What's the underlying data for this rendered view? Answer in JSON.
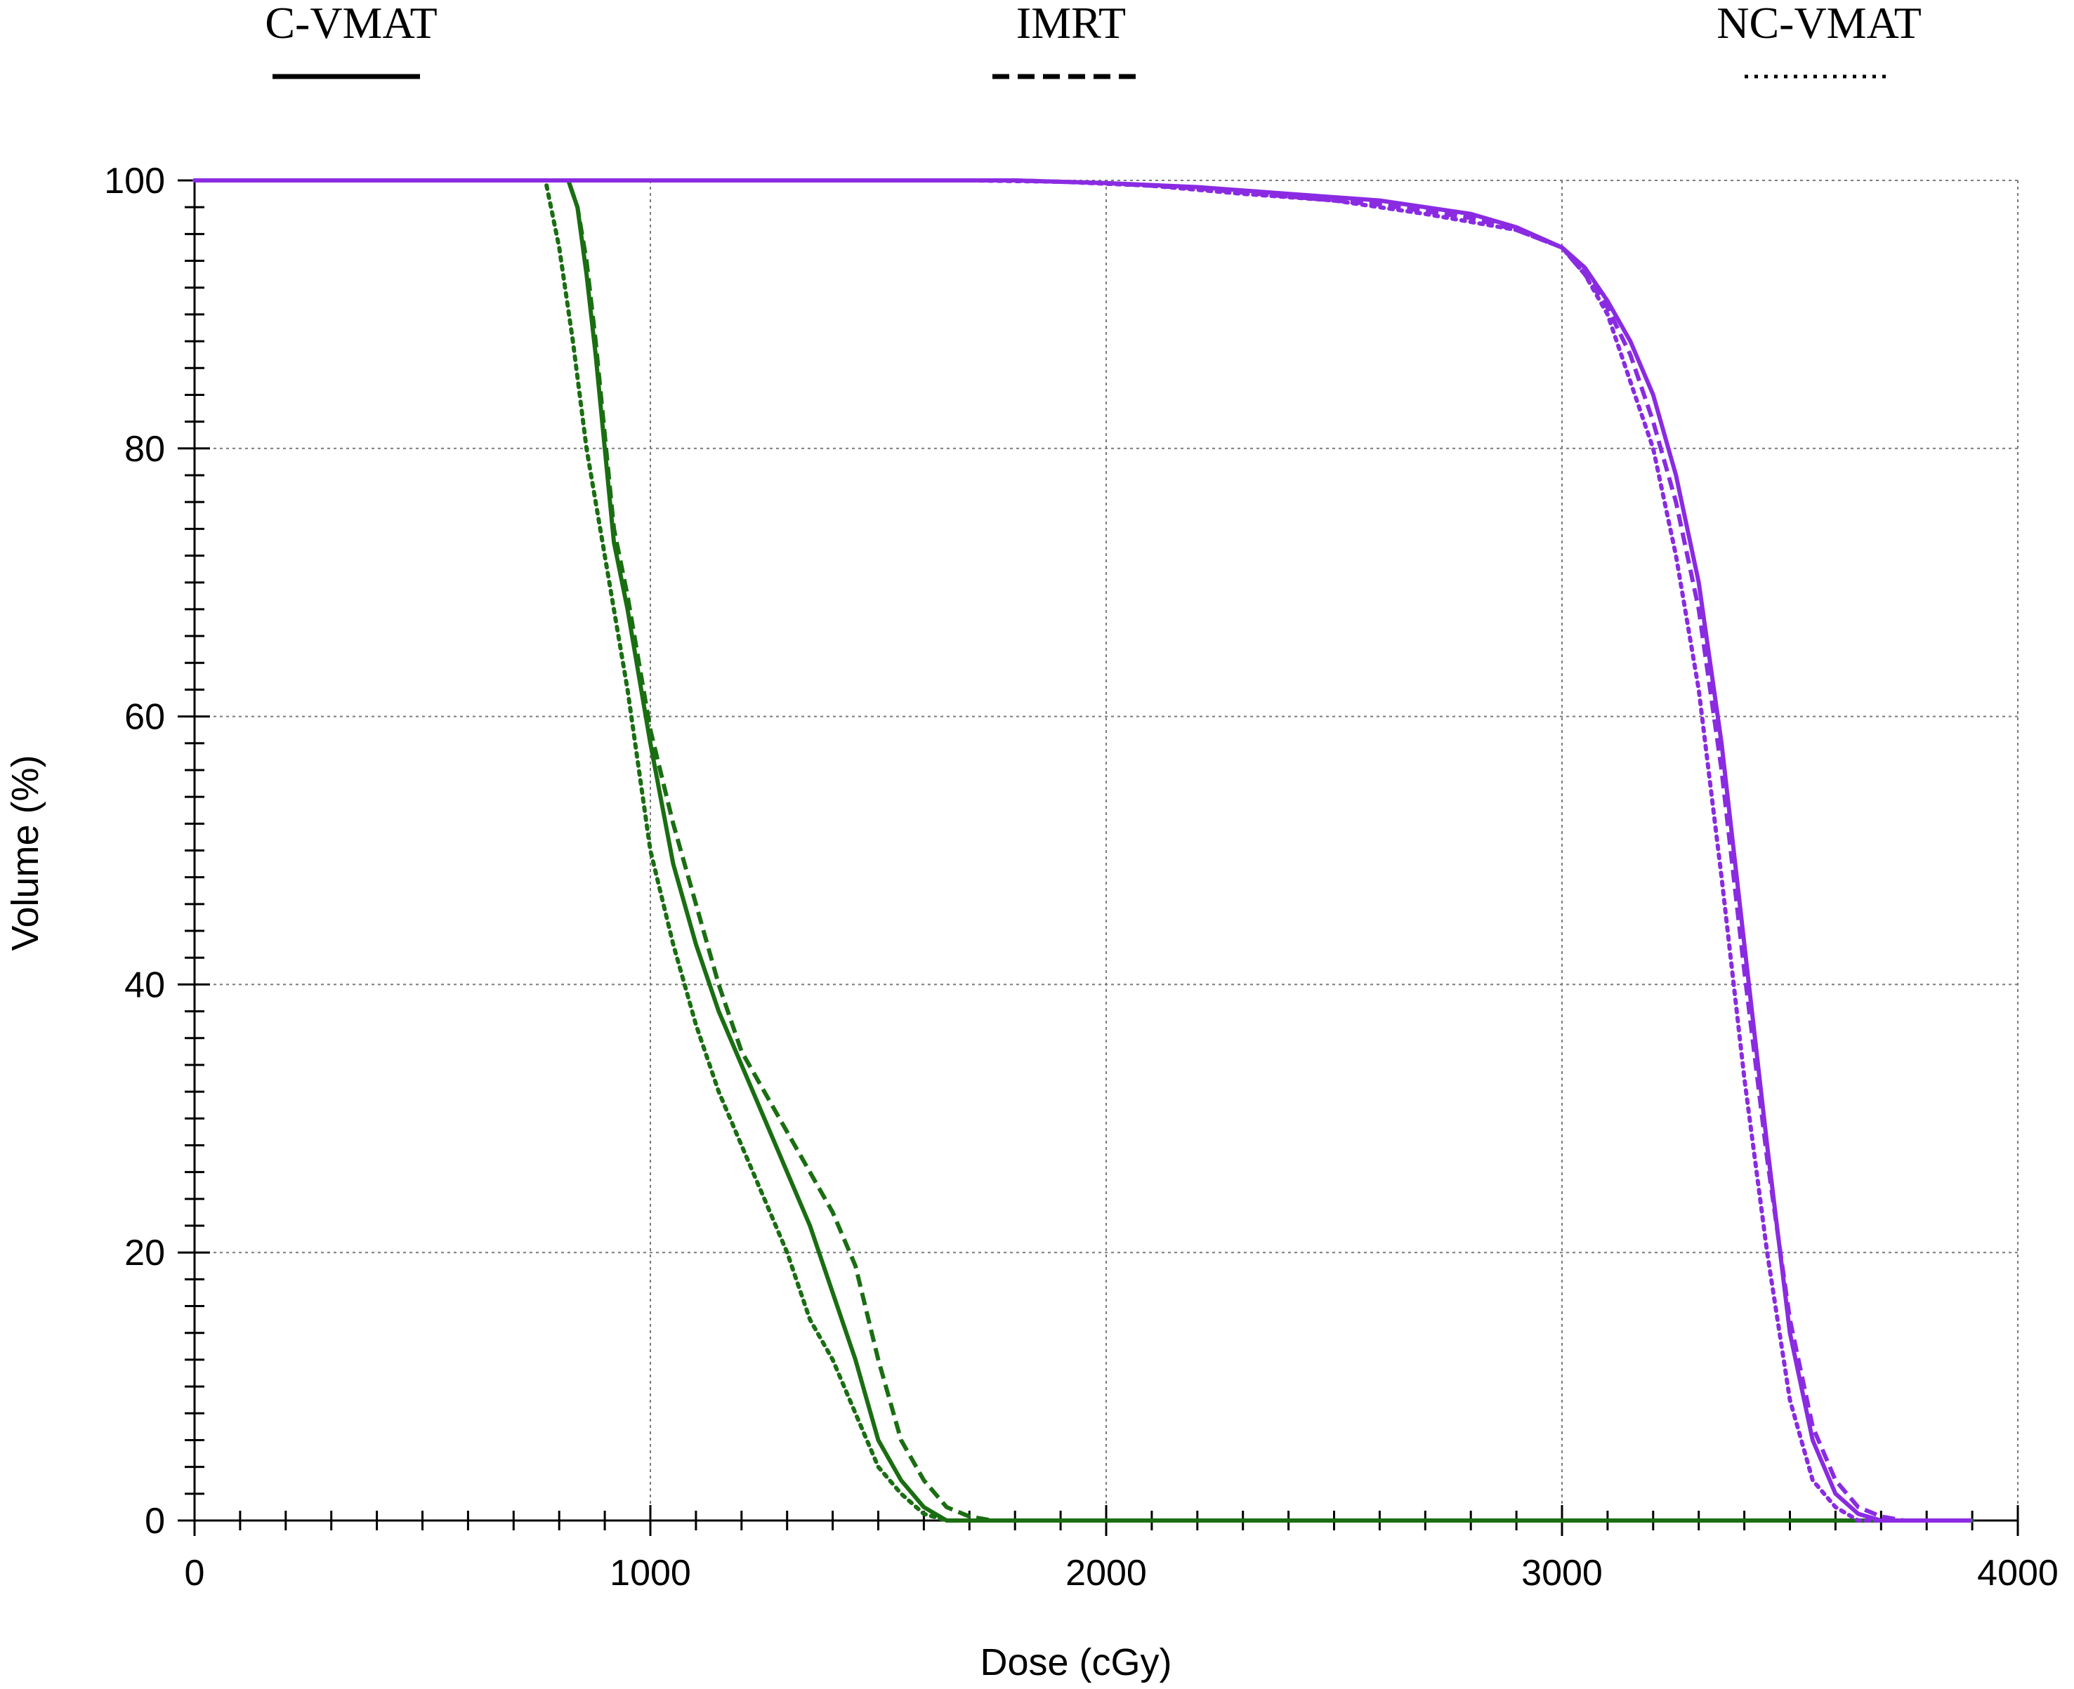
{
  "chart_data": {
    "type": "line",
    "title": "",
    "xlabel": "Dose (cGy)",
    "ylabel": "Volume (%)",
    "xlim": [
      0,
      4000
    ],
    "ylim": [
      0,
      100
    ],
    "xticks": [
      "0",
      "1000",
      "2000",
      "3000",
      "4000"
    ],
    "yticks": [
      "0",
      "20",
      "40",
      "60",
      "80",
      "100"
    ],
    "grid": true,
    "legend": {
      "placement": "top",
      "entries": [
        {
          "label": "C-VMAT",
          "style": "solid"
        },
        {
          "label": "IMRT",
          "style": "dashed"
        },
        {
          "label": "NC-VMAT",
          "style": "dotted"
        }
      ]
    },
    "colors": {
      "green": "#1a6e12",
      "purple": "#8a2be2",
      "grid": "#7a7a7a",
      "axis": "#000000"
    },
    "series": [
      {
        "plan": "C-VMAT",
        "structure_color": "green",
        "style": "solid",
        "x": [
          0,
          820,
          840,
          860,
          880,
          900,
          920,
          950,
          1000,
          1050,
          1100,
          1150,
          1200,
          1250,
          1300,
          1350,
          1400,
          1450,
          1500,
          1550,
          1600,
          1650,
          1700,
          2000,
          3000,
          3900
        ],
        "y": [
          100,
          100,
          98,
          93,
          87,
          80,
          73,
          68,
          58,
          49,
          43,
          38,
          34,
          30,
          26,
          22,
          17,
          12,
          6,
          3,
          1,
          0,
          0,
          0,
          0,
          0
        ]
      },
      {
        "plan": "IMRT",
        "structure_color": "green",
        "style": "dashed",
        "x": [
          0,
          820,
          840,
          860,
          880,
          900,
          920,
          950,
          1000,
          1050,
          1100,
          1150,
          1200,
          1250,
          1300,
          1350,
          1400,
          1450,
          1500,
          1550,
          1600,
          1650,
          1700,
          1750,
          2000,
          3000,
          3900
        ],
        "y": [
          100,
          100,
          98,
          94,
          88,
          81,
          74,
          69,
          59,
          52,
          46,
          40,
          35,
          32,
          29,
          26,
          23,
          19,
          12,
          6,
          3,
          1,
          0.3,
          0,
          0,
          0,
          0
        ]
      },
      {
        "plan": "NC-VMAT",
        "structure_color": "green",
        "style": "dotted",
        "x": [
          0,
          770,
          800,
          830,
          860,
          900,
          950,
          1000,
          1050,
          1100,
          1150,
          1200,
          1250,
          1300,
          1350,
          1400,
          1450,
          1500,
          1550,
          1600,
          1650,
          2000,
          3000,
          3900
        ],
        "y": [
          100,
          100,
          95,
          88,
          80,
          72,
          62,
          50,
          43,
          37,
          32,
          28,
          24,
          20,
          15,
          12,
          8,
          4,
          2,
          0.5,
          0,
          0,
          0,
          0
        ]
      },
      {
        "plan": "C-VMAT",
        "structure_color": "purple",
        "style": "solid",
        "x": [
          0,
          1800,
          2000,
          2200,
          2400,
          2600,
          2800,
          2900,
          3000,
          3050,
          3100,
          3150,
          3200,
          3250,
          3300,
          3350,
          3400,
          3450,
          3500,
          3550,
          3600,
          3650,
          3700,
          3750,
          3900
        ],
        "y": [
          100,
          100,
          99.8,
          99.5,
          99,
          98.5,
          97.5,
          96.5,
          95,
          93.5,
          91,
          88,
          84,
          78,
          70,
          58,
          43,
          28,
          14,
          6,
          2,
          0.5,
          0,
          0,
          0
        ]
      },
      {
        "plan": "IMRT",
        "structure_color": "purple",
        "style": "dashed",
        "x": [
          0,
          1800,
          2000,
          2200,
          2400,
          2600,
          2800,
          2900,
          3000,
          3050,
          3100,
          3150,
          3200,
          3250,
          3300,
          3350,
          3400,
          3450,
          3500,
          3550,
          3600,
          3650,
          3700,
          3750,
          3900
        ],
        "y": [
          100,
          100,
          99.8,
          99.4,
          98.8,
          98.2,
          97.2,
          96.3,
          95,
          93,
          90.5,
          87,
          82,
          76,
          68,
          56,
          41,
          27,
          15,
          7,
          3,
          1,
          0.3,
          0,
          0
        ]
      },
      {
        "plan": "NC-VMAT",
        "structure_color": "purple",
        "style": "dotted",
        "x": [
          0,
          1700,
          1900,
          2100,
          2300,
          2500,
          2700,
          2900,
          3000,
          3050,
          3100,
          3150,
          3200,
          3250,
          3300,
          3350,
          3400,
          3450,
          3500,
          3550,
          3600,
          3650,
          3900
        ],
        "y": [
          100,
          100,
          99.9,
          99.6,
          99,
          98.5,
          97.5,
          96.3,
          95,
          93,
          90,
          85,
          80,
          72,
          62,
          48,
          33,
          20,
          9,
          3,
          1,
          0,
          0
        ]
      }
    ]
  }
}
